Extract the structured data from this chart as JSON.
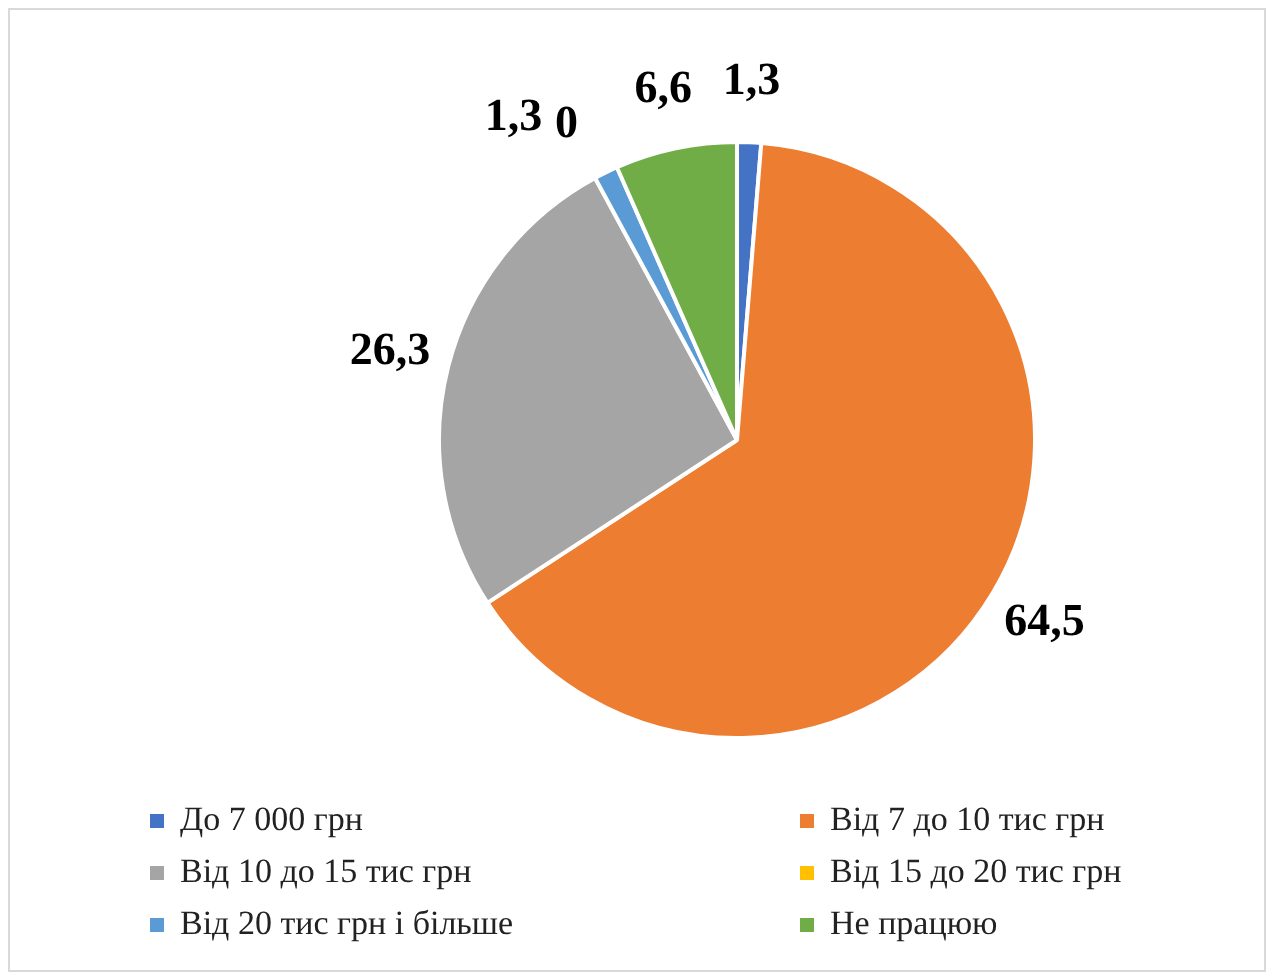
{
  "chart_data": {
    "type": "pie",
    "categories": [
      "До 7 000 грн",
      "Від 7 до 10 тис грн",
      "Від 10 до 15 тис грн",
      "Від 15 до 20 тис грн",
      "Від 20 тис грн і більше",
      "Не працюю"
    ],
    "values": [
      1.3,
      64.5,
      26.3,
      0,
      1.3,
      6.6
    ],
    "colors": [
      "#4472c4",
      "#ed7d31",
      "#a5a5a5",
      "#ffc000",
      "#5b9bd5",
      "#70ad47"
    ],
    "value_labels": [
      "1,3",
      "64,5",
      "26,3",
      "0",
      "1,3",
      "6,6"
    ],
    "legend": "bottom"
  }
}
